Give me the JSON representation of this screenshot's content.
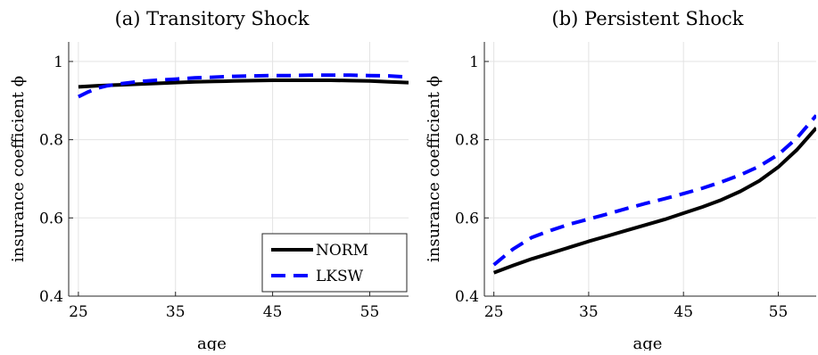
{
  "chart_data": [
    {
      "type": "line",
      "title": "(a) Transitory Shock",
      "xlabel": "age",
      "ylabel": "insurance coefficient ϕ",
      "xlim": [
        24,
        59
      ],
      "ylim": [
        0.4,
        1.05
      ],
      "xticks": [
        25,
        35,
        45,
        55
      ],
      "yticks": [
        0.4,
        0.6,
        0.8,
        1
      ],
      "ytick_labels": [
        "0.4",
        "0.6",
        "0.8",
        "1"
      ],
      "grid": true,
      "legend": "bottom-right",
      "series": [
        {
          "name": "NORM",
          "color": "#000000",
          "style": "solid",
          "x": [
            25,
            27,
            29,
            31,
            33,
            35,
            37,
            39,
            41,
            43,
            45,
            47,
            49,
            51,
            53,
            55,
            57,
            59
          ],
          "y": [
            0.935,
            0.938,
            0.94,
            0.942,
            0.944,
            0.946,
            0.948,
            0.949,
            0.95,
            0.951,
            0.952,
            0.952,
            0.952,
            0.952,
            0.951,
            0.95,
            0.948,
            0.946
          ]
        },
        {
          "name": "LKSW",
          "color": "#0000ff",
          "style": "dashed",
          "x": [
            25,
            26,
            27,
            28,
            29,
            31,
            33,
            35,
            37,
            39,
            41,
            43,
            45,
            47,
            49,
            51,
            53,
            55,
            57,
            59
          ],
          "y": [
            0.91,
            0.922,
            0.932,
            0.938,
            0.942,
            0.948,
            0.952,
            0.955,
            0.958,
            0.96,
            0.962,
            0.963,
            0.964,
            0.964,
            0.965,
            0.965,
            0.965,
            0.964,
            0.963,
            0.96
          ]
        }
      ]
    },
    {
      "type": "line",
      "title": "(b) Persistent Shock",
      "xlabel": "age",
      "ylabel": "insurance coefficient ϕ",
      "xlim": [
        24,
        59
      ],
      "ylim": [
        0.4,
        1.05
      ],
      "xticks": [
        25,
        35,
        45,
        55
      ],
      "yticks": [
        0.4,
        0.6,
        0.8,
        1
      ],
      "ytick_labels": [
        "0.4",
        "0.6",
        "0.8",
        "1"
      ],
      "grid": true,
      "series": [
        {
          "name": "NORM",
          "color": "#000000",
          "style": "solid",
          "x": [
            25,
            27,
            29,
            31,
            33,
            35,
            37,
            39,
            41,
            43,
            45,
            47,
            49,
            51,
            53,
            55,
            57,
            59
          ],
          "y": [
            0.46,
            0.478,
            0.495,
            0.51,
            0.525,
            0.54,
            0.554,
            0.568,
            0.582,
            0.596,
            0.612,
            0.628,
            0.646,
            0.668,
            0.695,
            0.73,
            0.775,
            0.83
          ]
        },
        {
          "name": "LKSW",
          "color": "#0000ff",
          "style": "dashed",
          "x": [
            25,
            27,
            29,
            31,
            33,
            35,
            37,
            39,
            41,
            43,
            45,
            47,
            49,
            51,
            53,
            55,
            57,
            59
          ],
          "y": [
            0.48,
            0.52,
            0.55,
            0.568,
            0.584,
            0.597,
            0.61,
            0.624,
            0.637,
            0.649,
            0.662,
            0.676,
            0.692,
            0.71,
            0.732,
            0.762,
            0.805,
            0.862
          ]
        }
      ]
    }
  ]
}
